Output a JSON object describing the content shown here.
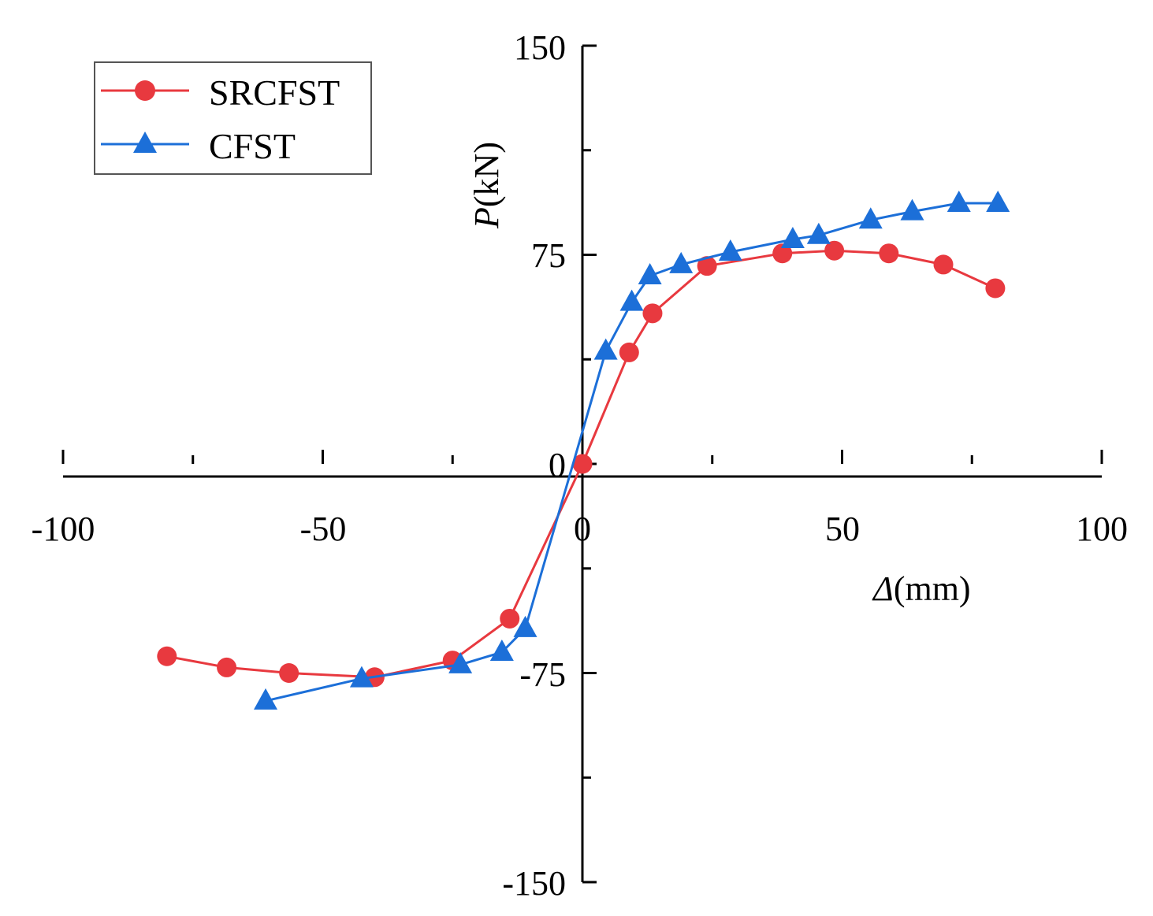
{
  "chart_data": {
    "type": "line",
    "title": "",
    "xlabel": {
      "symbol": "Δ",
      "unit": "(mm)"
    },
    "ylabel": {
      "symbol": "P",
      "unit": "(kN)"
    },
    "xlim": [
      -100,
      100
    ],
    "ylim": [
      -150,
      150
    ],
    "x_ticks": [
      -100,
      -50,
      0,
      50,
      100
    ],
    "x_tick_labels": [
      "-100",
      "-50",
      "0",
      "50",
      "100"
    ],
    "y_ticks": [
      -150,
      -75,
      0,
      75,
      150
    ],
    "y_tick_labels": [
      "-150",
      "-75",
      "0",
      "75",
      "150"
    ],
    "grid": false,
    "legend_position": "top-left",
    "series": [
      {
        "name": "SRCFST",
        "color": "#e8393f",
        "marker": "circle",
        "x": [
          -80,
          -68.5,
          -56.5,
          -40,
          -25,
          -14,
          0,
          9,
          13.5,
          24,
          38.5,
          48.5,
          59,
          69.5,
          79.5
        ],
        "y": [
          -69,
          -73,
          -75,
          -76.5,
          -70.5,
          -55.5,
          0,
          40,
          54,
          71,
          75.5,
          76.5,
          75.5,
          71.5,
          63
        ]
      },
      {
        "name": "CFST",
        "color": "#1c6fd8",
        "marker": "triangle",
        "x": [
          -61,
          -42.5,
          -23.5,
          -15.5,
          -11,
          4.5,
          9.5,
          13,
          19,
          28.5,
          40.5,
          45.5,
          55.5,
          63.5,
          72.5,
          80
        ],
        "y": [
          -85,
          -77,
          -72,
          -67.5,
          -59,
          40.5,
          58,
          67.5,
          71.5,
          76,
          80.5,
          82,
          87.5,
          90.5,
          93.5,
          93.5
        ]
      }
    ]
  }
}
